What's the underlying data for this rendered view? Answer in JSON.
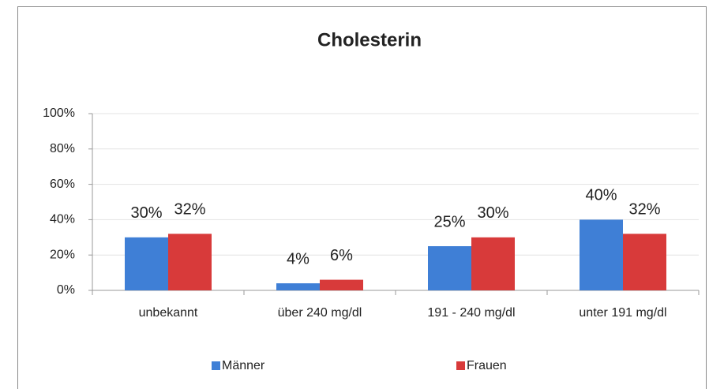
{
  "chart_data": {
    "type": "bar",
    "title": "Cholesterin",
    "categories": [
      "unbekannt",
      "über 240 mg/dl",
      "191 - 240 mg/dl",
      "unter 191 mg/dl"
    ],
    "series": [
      {
        "name": "Männer",
        "color": "#3f7fd6",
        "values": [
          30,
          4,
          25,
          40
        ],
        "value_labels": [
          "30%",
          "4%",
          "25%",
          "40%"
        ]
      },
      {
        "name": "Frauen",
        "color": "#d83a3a",
        "values": [
          32,
          6,
          30,
          32
        ],
        "value_labels": [
          "32%",
          "6%",
          "30%",
          "32%"
        ]
      }
    ],
    "ylim": [
      0,
      100
    ],
    "yticks": [
      {
        "value": 0,
        "label": "0%"
      },
      {
        "value": 20,
        "label": "20%"
      },
      {
        "value": 40,
        "label": "40%"
      },
      {
        "value": 60,
        "label": "60%"
      },
      {
        "value": 80,
        "label": "80%"
      },
      {
        "value": 100,
        "label": "100%"
      }
    ],
    "grid": true,
    "legend": "bottom"
  }
}
